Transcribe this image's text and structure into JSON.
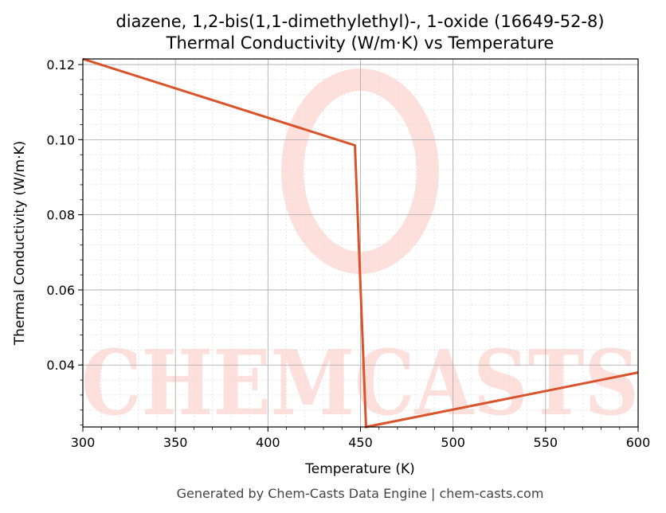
{
  "chart_data": {
    "type": "line",
    "title": "diazene, 1,2-bis(1,1-dimethylethyl)-, 1-oxide (16649-52-8)",
    "subtitle": "Thermal Conductivity (W/m·K) vs Temperature",
    "xlabel": "Temperature (K)",
    "ylabel": "Thermal Conductivity (W/m·K)",
    "xlim": [
      300,
      600
    ],
    "ylim": [
      0.0235,
      0.1215
    ],
    "xticks": [
      300,
      350,
      400,
      450,
      500,
      550,
      600
    ],
    "xtick_labels": [
      "300",
      "350",
      "400",
      "450",
      "500",
      "550",
      "600"
    ],
    "yticks": [
      0.04,
      0.06,
      0.08,
      0.1,
      0.12
    ],
    "ytick_labels": [
      "0.04",
      "0.06",
      "0.08",
      "0.10",
      "0.12"
    ],
    "grid": true,
    "series": [
      {
        "color": "#d9542a",
        "x": [
          300,
          447,
          453,
          600
        ],
        "y": [
          0.1215,
          0.0985,
          0.0235,
          0.038
        ]
      }
    ]
  },
  "watermark": "CHEMCASTS",
  "footer": "Generated by Chem-Casts Data Engine | chem-casts.com"
}
